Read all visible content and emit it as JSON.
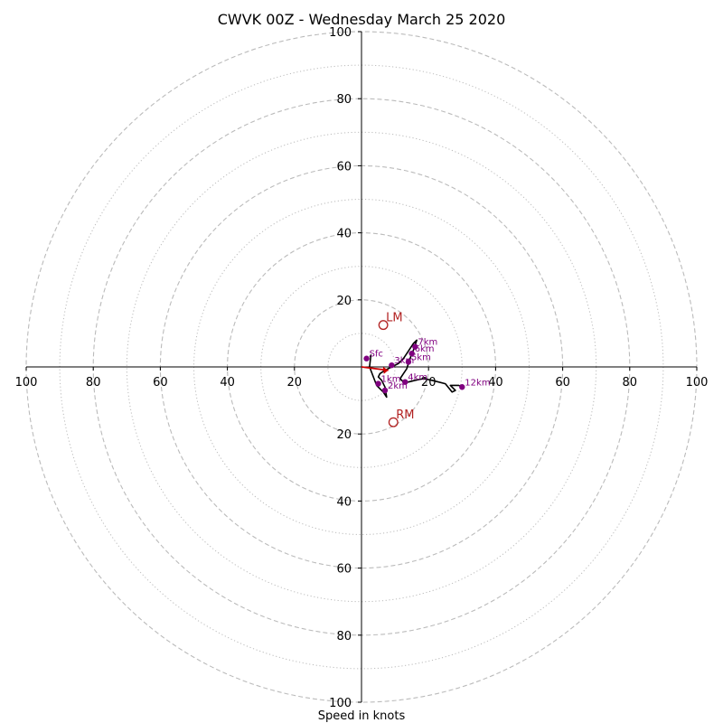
{
  "chart_data": {
    "type": "hodograph",
    "title": "CWVK 00Z - Wednesday March 25 2020",
    "xlabel": "Speed in knots",
    "rmax": 100,
    "rings_major": [
      20,
      40,
      60,
      80,
      100
    ],
    "rings_minor": [
      10,
      30,
      50,
      70,
      90
    ],
    "x_ticks": [
      "100",
      "80",
      "60",
      "40",
      "20",
      "20",
      "40",
      "60",
      "80",
      "100"
    ],
    "y_ticks": [
      "100",
      "80",
      "60",
      "40",
      "20",
      "20",
      "40",
      "60",
      "80",
      "100"
    ],
    "x_tick_values": [
      -100,
      -80,
      -60,
      -40,
      -20,
      20,
      40,
      60,
      80,
      100
    ],
    "y_tick_values": [
      100,
      80,
      60,
      40,
      20,
      -20,
      -40,
      -60,
      -80,
      -100
    ],
    "trace": [
      [
        2.5,
        3.0
      ],
      [
        2.8,
        3.5
      ],
      [
        2.4,
        0
      ],
      [
        4.5,
        -5.5
      ],
      [
        6.5,
        -7.5
      ],
      [
        7.5,
        -9
      ],
      [
        7.0,
        -6
      ],
      [
        6.0,
        -4
      ],
      [
        5.0,
        -3
      ],
      [
        5.5,
        -2
      ],
      [
        7.0,
        -1
      ],
      [
        9.0,
        0
      ],
      [
        11.0,
        1.0
      ],
      [
        12.5,
        2.5
      ],
      [
        13.5,
        4.0
      ],
      [
        14.5,
        5.5
      ],
      [
        15.5,
        7.0
      ],
      [
        16.5,
        8.0
      ],
      [
        16.0,
        6.5
      ],
      [
        15.5,
        5.0
      ],
      [
        15.0,
        4.0
      ],
      [
        14.5,
        2.5
      ],
      [
        14.0,
        1.0
      ],
      [
        13.5,
        -0.5
      ],
      [
        12.5,
        -2.0
      ],
      [
        11.5,
        -3.5
      ],
      [
        12.5,
        -4.5
      ],
      [
        14.0,
        -4.5
      ],
      [
        16.0,
        -4.0
      ],
      [
        18.5,
        -3.5
      ],
      [
        21.0,
        -4.0
      ],
      [
        23.0,
        -4.5
      ],
      [
        25.0,
        -5.0
      ],
      [
        27.0,
        -7.5
      ],
      [
        28.0,
        -7.0
      ],
      [
        27.0,
        -6.0
      ],
      [
        26.5,
        -5.5
      ],
      [
        29.0,
        -5.5
      ],
      [
        30.0,
        -6.0
      ]
    ],
    "height_markers": [
      {
        "label": "Sfc",
        "u": 1.5,
        "v": 2.5
      },
      {
        "label": "1km",
        "u": 5.0,
        "v": -5.0
      },
      {
        "label": "2km",
        "u": 7.0,
        "v": -7.0
      },
      {
        "label": "3km",
        "u": 9.0,
        "v": 0.5
      },
      {
        "label": "4km",
        "u": 13.0,
        "v": -4.5
      },
      {
        "label": "5km",
        "u": 14.0,
        "v": 1.5
      },
      {
        "label": "6km",
        "u": 15.0,
        "v": 4.0
      },
      {
        "label": "7km",
        "u": 16.0,
        "v": 6.0
      },
      {
        "label": "12km",
        "u": 30.0,
        "v": -6.0
      }
    ],
    "shear_vector": [
      [
        0,
        0
      ],
      [
        8,
        -1
      ]
    ],
    "storm_motion": [
      {
        "label": "LM",
        "u": 6.5,
        "v": 12.5
      },
      {
        "label": "RM",
        "u": 9.5,
        "v": -16.5
      }
    ],
    "colors": {
      "grid": "#bbbbbb",
      "axis": "#000000",
      "trace": "#000000",
      "markers": "#800080",
      "shear": "#cc0000",
      "storm_motion": "#b22222"
    }
  }
}
